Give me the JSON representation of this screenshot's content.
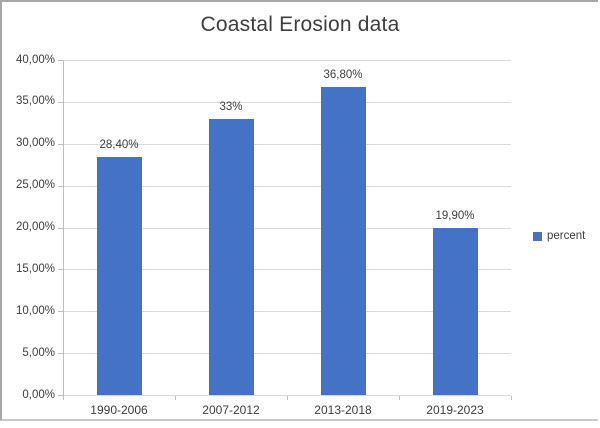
{
  "chart_data": {
    "type": "bar",
    "title": "Coastal Erosion data",
    "categories": [
      "1990-2006",
      "2007-2012",
      "2013-2018",
      "2019-2023"
    ],
    "series": [
      {
        "name": "percent",
        "values": [
          28.4,
          33,
          36.8,
          19.9
        ],
        "value_labels": [
          "28,40%",
          "33%",
          "36,80%",
          "19,90%"
        ]
      }
    ],
    "xlabel": "",
    "ylabel": "",
    "ylim": [
      0,
      40
    ],
    "grid": true,
    "legend_position": "right",
    "y_ticks": [
      {
        "value": 0,
        "label": "0,00%"
      },
      {
        "value": 5,
        "label": "5,00%"
      },
      {
        "value": 10,
        "label": "10,00%"
      },
      {
        "value": 15,
        "label": "15,00%"
      },
      {
        "value": 20,
        "label": "20,00%"
      },
      {
        "value": 25,
        "label": "25,00%"
      },
      {
        "value": 30,
        "label": "30,00%"
      },
      {
        "value": 35,
        "label": "35,00%"
      },
      {
        "value": 40,
        "label": "40,00%"
      }
    ]
  },
  "legend": {
    "label": "percent"
  },
  "colors": {
    "bar": "#4472C4",
    "gridline": "#D9D9D9",
    "axis": "#BFBFBF",
    "text": "#404040",
    "frame": "#A6A6A6"
  }
}
